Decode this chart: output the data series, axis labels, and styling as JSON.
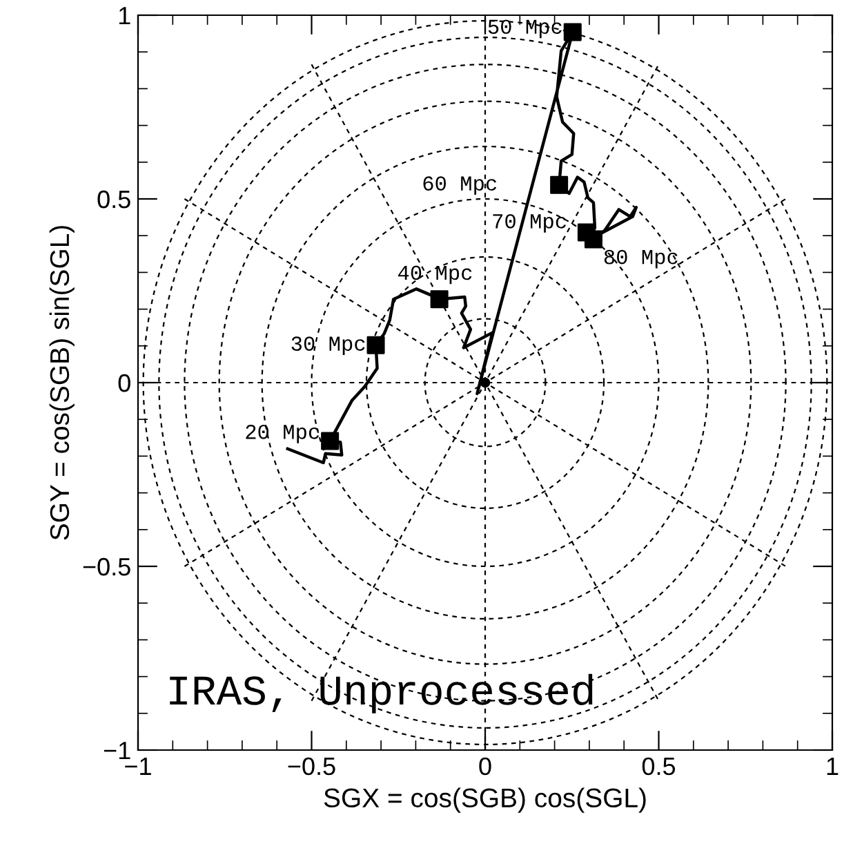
{
  "chart_data": {
    "type": "line",
    "xlabel": "SGX = cos(SGB) cos(SGL)",
    "ylabel": "SGY = cos(SGB) sin(SGL)",
    "xlim": [
      -1,
      1
    ],
    "ylim": [
      -1,
      1
    ],
    "xticks": [
      {
        "value": -1,
        "label": "−1"
      },
      {
        "value": -0.5,
        "label": "−0.5"
      },
      0,
      0.5,
      1
    ],
    "yticks": [
      {
        "value": -1,
        "label": "−1"
      },
      {
        "value": -0.5,
        "label": "−0.5"
      },
      0,
      0.5,
      1
    ],
    "line_style": "solid",
    "series": [
      {
        "type": "line",
        "color": "#000000",
        "marker": "none",
        "x": [
          -0.569,
          -0.466,
          -0.46,
          -0.413,
          -0.417,
          -0.447,
          -0.384,
          -0.347,
          -0.311,
          -0.315,
          -0.291,
          -0.275,
          -0.264,
          -0.198,
          -0.158,
          -0.132,
          -0.059,
          -0.056,
          -0.068,
          -0.042,
          -0.062,
          0.021,
          -0.023,
          0.252,
          0.219,
          0.206,
          0.223,
          0.255,
          0.25,
          0.219,
          0.213,
          0.242,
          0.266,
          0.285,
          0.296,
          0.312,
          0.316,
          0.292,
          0.312,
          0.345,
          0.385,
          0.418,
          0.435,
          0.425,
          0.339
        ],
        "values": [
          -0.18,
          -0.218,
          -0.193,
          -0.197,
          -0.162,
          -0.159,
          -0.049,
          -0.011,
          0.039,
          0.102,
          0.133,
          0.17,
          0.227,
          0.255,
          0.239,
          0.227,
          0.233,
          0.208,
          0.189,
          0.145,
          0.095,
          0.136,
          -0.03,
          0.954,
          0.903,
          0.778,
          0.709,
          0.678,
          0.621,
          0.603,
          0.538,
          0.515,
          0.559,
          0.546,
          0.503,
          0.49,
          0.421,
          0.409,
          0.39,
          0.415,
          0.471,
          0.452,
          0.477,
          0.452,
          0.409
        ]
      },
      {
        "type": "scatter",
        "color": "#000000",
        "marker": "square",
        "x": [
          -0.447,
          -0.315,
          -0.132,
          0.252,
          0.213,
          0.292,
          0.312
        ],
        "values": [
          -0.159,
          0.102,
          0.227,
          0.954,
          0.538,
          0.409,
          0.39
        ]
      },
      {
        "type": "scatter",
        "color": "#000000",
        "marker": "circle",
        "x": [
          0
        ],
        "values": [
          0
        ]
      },
      {
        "color": "#000000",
        "marker": "none",
        "line_style": "dashed",
        "x": [
          -1,
          1
        ],
        "values": [
          0,
          0
        ]
      },
      {
        "color": "#000000",
        "marker": "none",
        "line_style": "dashed",
        "x": [
          -0.866,
          0.866
        ],
        "values": [
          -0.5,
          0.5
        ]
      },
      {
        "color": "#000000",
        "marker": "none",
        "line_style": "dashed",
        "x": [
          -0.5,
          0.5
        ],
        "values": [
          -0.866,
          0.866
        ]
      },
      {
        "color": "#000000",
        "marker": "none",
        "line_style": "dashed",
        "x": [
          0,
          0
        ],
        "values": [
          -1,
          1
        ]
      },
      {
        "color": "#000000",
        "marker": "none",
        "line_style": "dashed",
        "x": [
          -0.5,
          0.5
        ],
        "values": [
          0.866,
          -0.866
        ]
      },
      {
        "color": "#000000",
        "marker": "none",
        "line_style": "dashed",
        "x": [
          -0.866,
          0.866
        ],
        "values": [
          0.5,
          -0.5
        ]
      }
    ],
    "annotations": [
      {
        "text": "20 Mpc",
        "x": -0.447,
        "y": -0.159
      },
      {
        "text": "30 Mpc",
        "x": -0.315,
        "y": 0.102
      },
      {
        "text": "40 Mpc",
        "x": -0.132,
        "y": 0.227
      },
      {
        "text": "50 Mpc",
        "x": 0.252,
        "y": 0.954
      },
      {
        "text": "60 Mpc",
        "x": 0.213,
        "y": 0.538
      },
      {
        "text": "70 Mpc",
        "x": 0.292,
        "y": 0.409
      },
      {
        "text": "80 Mpc",
        "x": 0.312,
        "y": 0.39
      },
      "IRAS, Unprocessed"
    ]
  }
}
